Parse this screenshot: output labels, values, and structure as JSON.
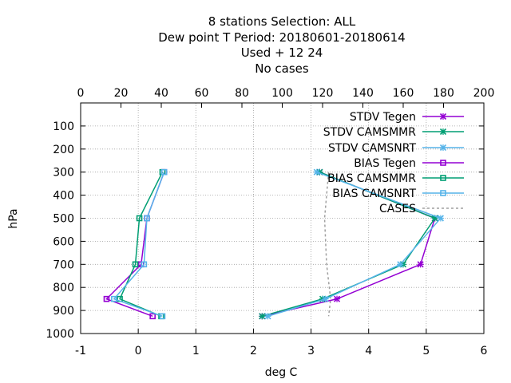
{
  "chart_data": {
    "type": "line",
    "title": [
      "8 stations Selection: ALL",
      "Dew point T  Period: 20180601-20180614",
      "Used   + 12 24",
      "No cases"
    ],
    "xlabel": "deg C",
    "ylabel": "hPa",
    "xlim": [
      -1,
      6
    ],
    "x2lim": [
      0,
      200
    ],
    "ylim": [
      1000,
      0
    ],
    "y_reversed": true,
    "grid": true,
    "legend_position": "top-right",
    "x_ticks": [
      "-1",
      "0",
      "1",
      "2",
      "3",
      "4",
      "5",
      "6"
    ],
    "x2_ticks": [
      "0",
      "20",
      "40",
      "60",
      "80",
      "100",
      "120",
      "140",
      "160",
      "180",
      "200"
    ],
    "y_ticks": [
      "100",
      "200",
      "300",
      "400",
      "500",
      "600",
      "700",
      "800",
      "900",
      "1000"
    ],
    "y_tick_values": [
      100,
      200,
      300,
      400,
      500,
      600,
      700,
      800,
      900,
      1000
    ],
    "levels": [
      300,
      500,
      700,
      850,
      925
    ],
    "series": [
      {
        "name": "STDV Tegen",
        "axis": "bottom",
        "marker": "x",
        "color": "#9400d3",
        "values": [
          3.15,
          5.15,
          4.9,
          3.45,
          2.15
        ]
      },
      {
        "name": "STDV CAMSMMR",
        "axis": "bottom",
        "marker": "x",
        "color": "#009e73",
        "values": [
          3.15,
          5.15,
          4.6,
          3.2,
          2.15
        ]
      },
      {
        "name": "STDV CAMSNRT",
        "axis": "bottom",
        "marker": "x",
        "color": "#56b4e9",
        "values": [
          3.1,
          5.25,
          4.55,
          3.25,
          2.25
        ]
      },
      {
        "name": "BIAS Tegen",
        "axis": "bottom",
        "marker": "square",
        "color": "#9400d3",
        "values": [
          0.45,
          0.15,
          0.05,
          -0.55,
          0.25
        ]
      },
      {
        "name": "BIAS CAMSMMR",
        "axis": "bottom",
        "marker": "square",
        "color": "#009e73",
        "values": [
          0.42,
          0.02,
          -0.05,
          -0.32,
          0.4
        ]
      },
      {
        "name": "BIAS CAMSNRT",
        "axis": "bottom",
        "marker": "square",
        "color": "#56b4e9",
        "values": [
          0.45,
          0.15,
          0.1,
          -0.42,
          0.42
        ]
      },
      {
        "name": "CASES",
        "axis": "top",
        "marker": "none",
        "color": "#a0a0a0",
        "dashed": true,
        "values": [
          123,
          121,
          122,
          124,
          123
        ]
      }
    ]
  }
}
